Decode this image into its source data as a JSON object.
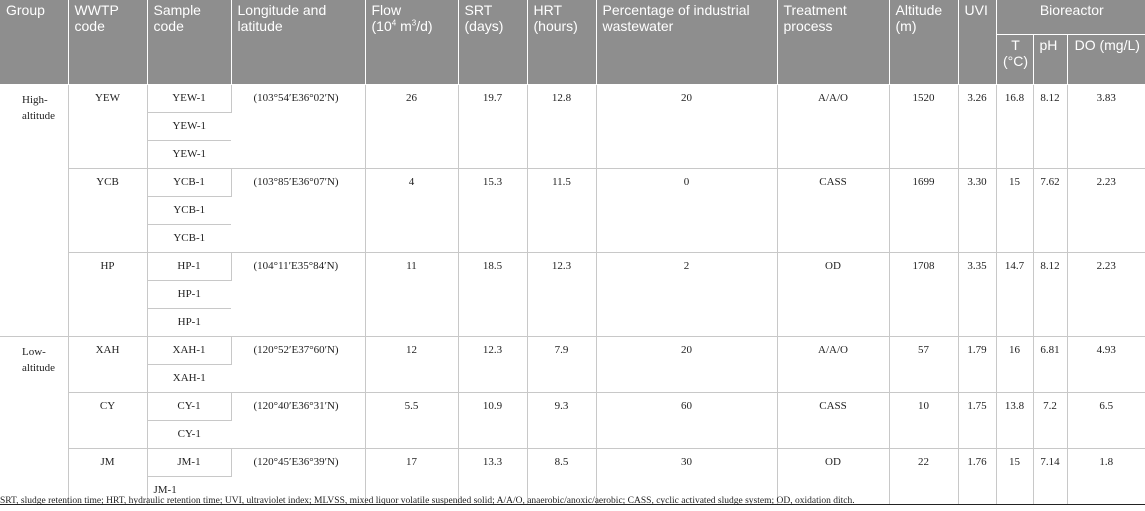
{
  "headers": {
    "group": "Group",
    "wwtp_code": "WWTP code",
    "sample_code": "Sample code",
    "lonlat": "Longitude and latitude",
    "flow": "Flow",
    "flow_unit_pre": "(10",
    "flow_unit_sup4": "4",
    "flow_unit_mid": " m",
    "flow_unit_sup3": "3",
    "flow_unit_post": "/d)",
    "srt": "SRT (days)",
    "hrt": "HRT (hours)",
    "industrial": "Percentage of industrial wastewater",
    "process": "Treatment process",
    "altitude": "Altitude (m)",
    "uvi": "UVI",
    "bioreactor": "Bioreactor",
    "temp": "T (°C)",
    "ph": "pH",
    "do": "DO (mg/L)"
  },
  "groups": [
    {
      "label": "High-altitude",
      "plants": [
        {
          "code": "YEW",
          "samples": [
            "YEW-1",
            "YEW-1",
            "YEW-1"
          ],
          "lonlat": "(103°54′E36°02′N)",
          "flow": "26",
          "srt": "19.7",
          "hrt": "12.8",
          "industrial": "20",
          "process": "A/A/O",
          "altitude": "1520",
          "uvi": "3.26",
          "t": "16.8",
          "ph": "8.12",
          "do": "3.83"
        },
        {
          "code": "YCB",
          "samples": [
            "YCB-1",
            "YCB-1",
            "YCB-1"
          ],
          "lonlat": "(103°85′E36°07′N)",
          "flow": "4",
          "srt": "15.3",
          "hrt": "11.5",
          "industrial": "0",
          "process": "CASS",
          "altitude": "1699",
          "uvi": "3.30",
          "t": "15",
          "ph": "7.62",
          "do": "2.23"
        },
        {
          "code": "HP",
          "samples": [
            "HP-1",
            "HP-1",
            "HP-1"
          ],
          "lonlat": "(104°11′E35°84′N)",
          "flow": "11",
          "srt": "18.5",
          "hrt": "12.3",
          "industrial": "2",
          "process": "OD",
          "altitude": "1708",
          "uvi": "3.35",
          "t": "14.7",
          "ph": "8.12",
          "do": "2.23"
        }
      ]
    },
    {
      "label": "Low-altitude",
      "plants": [
        {
          "code": "XAH",
          "samples": [
            "XAH-1",
            "XAH-1"
          ],
          "lonlat": "(120°52′E37°60′N)",
          "flow": "12",
          "srt": "12.3",
          "hrt": "7.9",
          "industrial": "20",
          "process": "A/A/O",
          "altitude": "57",
          "uvi": "1.79",
          "t": "16",
          "ph": "6.81",
          "do": "4.93"
        },
        {
          "code": "CY",
          "samples": [
            "CY-1",
            "CY-1"
          ],
          "lonlat": "(120°40′E36°31′N)",
          "flow": "5.5",
          "srt": "10.9",
          "hrt": "9.3",
          "industrial": "60",
          "process": "CASS",
          "altitude": "10",
          "uvi": "1.75",
          "t": "13.8",
          "ph": "7.2",
          "do": "6.5"
        },
        {
          "code": "JM",
          "samples": [
            "JM-1",
            "JM-1"
          ],
          "lonlat": "(120°45′E36°39′N)",
          "flow": "17",
          "srt": "13.3",
          "hrt": "8.5",
          "industrial": "30",
          "process": "OD",
          "altitude": "22",
          "uvi": "1.76",
          "t": "15",
          "ph": "7.14",
          "do": "1.8"
        }
      ]
    }
  ],
  "footnote": "SRT, sludge retention time; HRT, hydraulic retention time; UVI, ultraviolet index; MLVSS, mixed liquor volatile suspended solid; A/A/O, anaerobic/anoxic/aerobic; CASS, cyclic activated sludge system; OD, oxidation ditch."
}
